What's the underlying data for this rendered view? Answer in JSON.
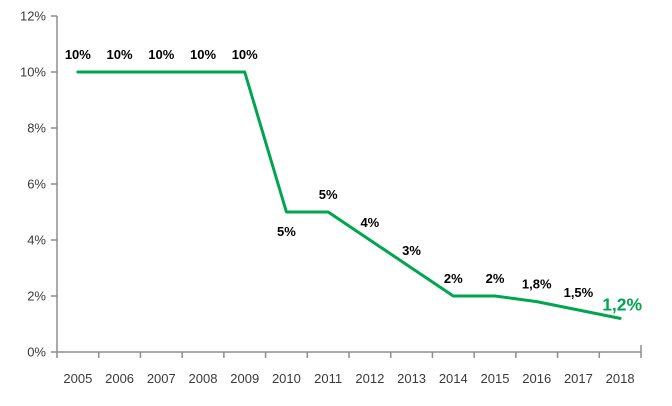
{
  "chart_style": {
    "background": "#ffffff",
    "line_color": "#00a64f",
    "axis_color": "#8e8e8e",
    "tick_label_color": "#3a3a3a",
    "data_label_color": "#000000",
    "final_label_color": "#00a64f",
    "line_width": 3
  },
  "chart_data": {
    "type": "line",
    "title": "",
    "xlabel": "",
    "ylabel": "",
    "x": [
      "2005",
      "2006",
      "2007",
      "2008",
      "2009",
      "2010",
      "2011",
      "2012",
      "2013",
      "2014",
      "2015",
      "2016",
      "2017",
      "2018"
    ],
    "series": [
      {
        "name": "rate",
        "values": [
          10,
          10,
          10,
          10,
          10,
          5,
          5,
          4,
          3,
          2,
          2,
          1.8,
          1.5,
          1.2
        ]
      }
    ],
    "point_labels": [
      "10%",
      "10%",
      "10%",
      "10%",
      "10%",
      "5%",
      "5%",
      "4%",
      "3%",
      "2%",
      "2%",
      "1,8%",
      "1,5%",
      "1,2%"
    ],
    "label_placement": [
      "above",
      "above",
      "above",
      "above",
      "above",
      "below",
      "above",
      "above",
      "above",
      "above",
      "above",
      "above",
      "above",
      "above"
    ],
    "highlight_last": true,
    "ylim": [
      0,
      12
    ],
    "yticks": [
      0,
      2,
      4,
      6,
      8,
      10,
      12
    ],
    "ytick_labels": [
      "0%",
      "2%",
      "4%",
      "6%",
      "8%",
      "10%",
      "12%"
    ],
    "grid": false,
    "legend_position": "none"
  }
}
